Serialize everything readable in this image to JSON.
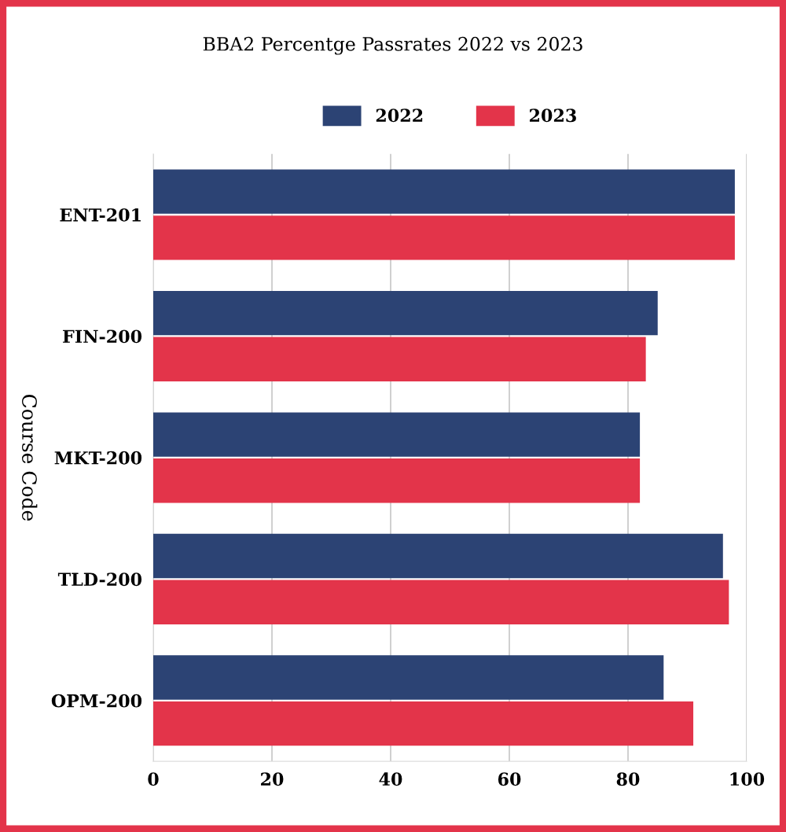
{
  "chart_data": {
    "type": "bar",
    "orientation": "horizontal",
    "title": "BBA2 Percentge Passrates 2022 vs 2023",
    "ylabel": "Course Code",
    "categories": [
      "ENT-201",
      "FIN-200",
      "MKT-200",
      "TLD-200",
      "OPM-200"
    ],
    "series": [
      {
        "name": "2022",
        "color": "#2c4374",
        "values": [
          98,
          85,
          82,
          96,
          86
        ]
      },
      {
        "name": "2023",
        "color": "#e3344a",
        "values": [
          98,
          83,
          82,
          97,
          91
        ]
      }
    ],
    "xlim": [
      0,
      100
    ],
    "xticks": [
      0,
      20,
      40,
      60,
      80,
      100
    ],
    "grid": "x",
    "legend": "top"
  }
}
